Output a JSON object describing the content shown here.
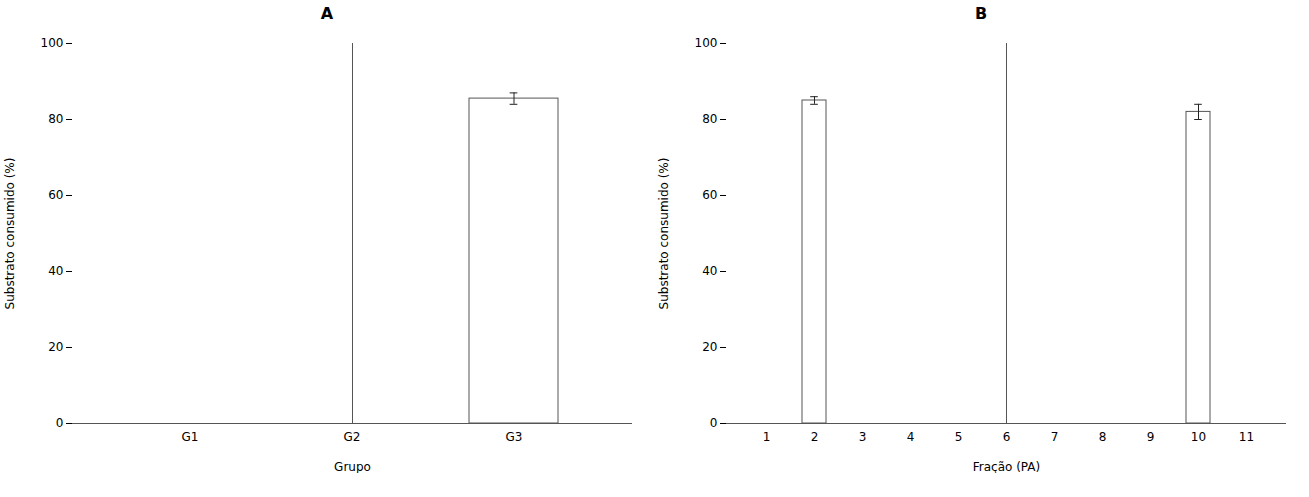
{
  "chart_data": [
    {
      "type": "bar",
      "title": "A",
      "categories": [
        "G1",
        "G2",
        "G3"
      ],
      "values": [
        0,
        0,
        85.5
      ],
      "errors": [
        0,
        0,
        1.5
      ],
      "xlabel": "Grupo",
      "ylabel": "Substrato consumido (%)",
      "ylim": [
        0,
        100
      ],
      "yticks": [
        0,
        20,
        40,
        60,
        80,
        100
      ],
      "color": "#ffffff"
    },
    {
      "type": "bar",
      "title": "B",
      "categories": [
        1,
        2,
        3,
        4,
        5,
        6,
        7,
        8,
        9,
        10,
        11
      ],
      "values": [
        0,
        85.0,
        0,
        0,
        0,
        0,
        0,
        0,
        0,
        82.0,
        0
      ],
      "errors": [
        0,
        1.0,
        0,
        0,
        0,
        0,
        0,
        0,
        0,
        2.0,
        0
      ],
      "xlabel": "Fração (PA)",
      "ylabel": "Substrato consumido (%)",
      "ylim": [
        0,
        100
      ],
      "yticks": [
        0,
        20,
        40,
        60,
        80,
        100
      ],
      "color": "#ffffff"
    }
  ]
}
